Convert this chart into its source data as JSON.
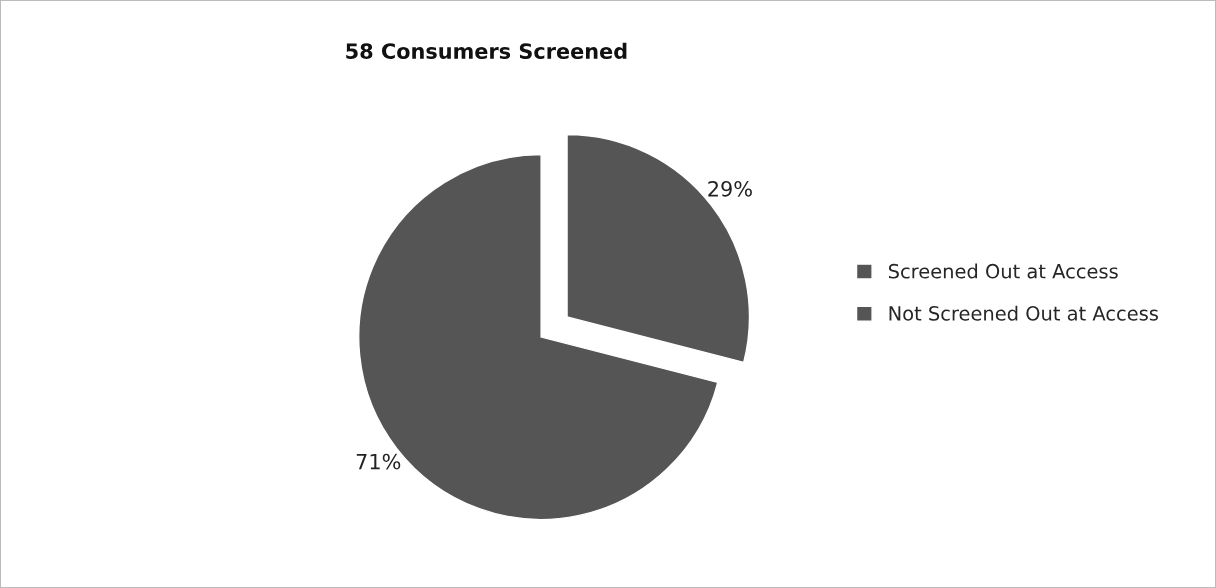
{
  "chart_data": {
    "type": "pie",
    "title": "58 Consumers Screened",
    "categories": [
      "Screened Out at Access",
      "Not Screened Out at Access"
    ],
    "values": [
      29,
      71
    ],
    "colors": [
      "#555555",
      "#555555"
    ],
    "value_labels": [
      "29%",
      "71%"
    ],
    "legend": "right"
  }
}
